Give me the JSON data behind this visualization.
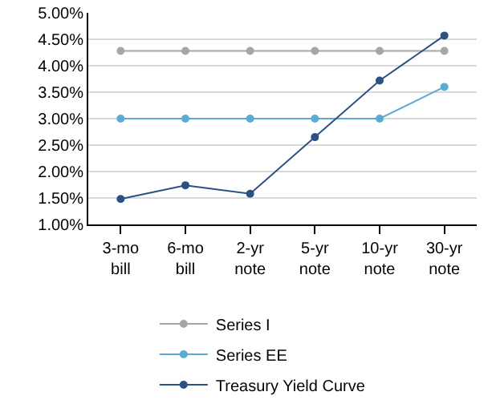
{
  "chart_data": {
    "type": "line",
    "categories": [
      "3-mo bill",
      "6-mo bill",
      "2-yr note",
      "5-yr note",
      "10-yr note",
      "30-yr note"
    ],
    "series": [
      {
        "name": "Series I",
        "color": "#a6a6a6",
        "values": [
          4.28,
          4.28,
          4.28,
          4.28,
          4.28,
          4.28
        ]
      },
      {
        "name": "Series EE",
        "color": "#5aaad6",
        "values": [
          3.0,
          3.0,
          3.0,
          3.0,
          3.0,
          3.6
        ]
      },
      {
        "name": "Treasury Yield Curve",
        "color": "#2b5182",
        "values": [
          1.48,
          1.74,
          1.58,
          2.65,
          3.72,
          4.57
        ]
      }
    ],
    "ylim": [
      1,
      5
    ],
    "yticks": [
      {
        "value": 1,
        "label": "1.00%"
      },
      {
        "value": 1.5,
        "label": "1.50%"
      },
      {
        "value": 2,
        "label": "2.00%"
      },
      {
        "value": 2.5,
        "label": "2.50%"
      },
      {
        "value": 3,
        "label": "3.00%"
      },
      {
        "value": 3.5,
        "label": "3.50%"
      },
      {
        "value": 4,
        "label": "4.00%"
      },
      {
        "value": 4.5,
        "label": "4.50%"
      },
      {
        "value": 5,
        "label": "5.00%"
      }
    ],
    "grid": "y",
    "legend": "bottom",
    "marker": "circle",
    "line_style": "solid"
  }
}
